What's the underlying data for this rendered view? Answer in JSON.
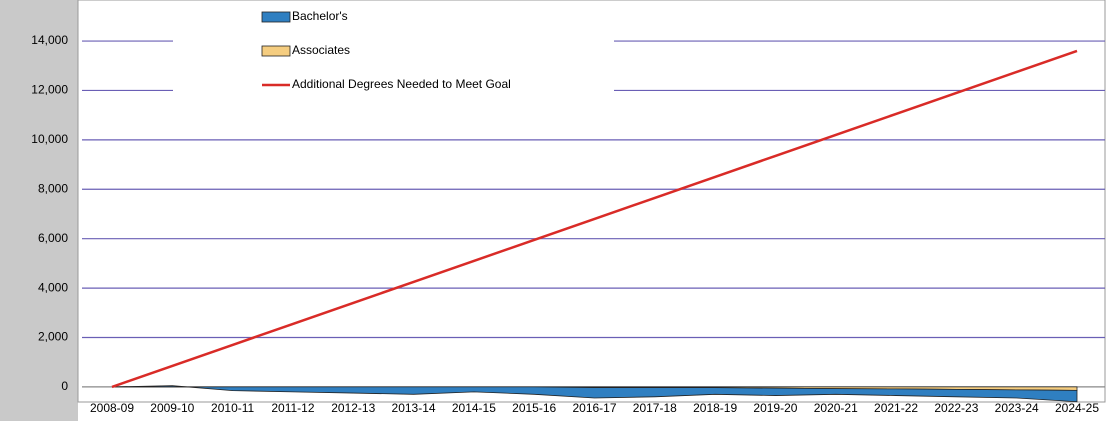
{
  "chart_data": {
    "type": "area",
    "categories": [
      "2008-09",
      "2009-10",
      "2010-11",
      "2011-12",
      "2012-13",
      "2013-14",
      "2014-15",
      "2015-16",
      "2016-17",
      "2017-18",
      "2018-19",
      "2019-20",
      "2020-21",
      "2021-22",
      "2022-23",
      "2023-24",
      "2024-25"
    ],
    "series": [
      {
        "name": "Bachelor's",
        "type": "area",
        "color": "#2f7fc1",
        "values": [
          0,
          50,
          -150,
          -200,
          -250,
          -300,
          -200,
          -300,
          -420,
          -370,
          -270,
          -300,
          -230,
          -270,
          -300,
          -330,
          -460
        ]
      },
      {
        "name": "Associates",
        "type": "area",
        "color": "#f5cd80",
        "values": [
          0,
          0,
          0,
          0,
          0,
          0,
          0,
          0,
          -30,
          -30,
          -30,
          -50,
          -70,
          -80,
          -100,
          -120,
          -140
        ]
      },
      {
        "name": "Additional Degrees Needed to Meet Goal",
        "type": "line",
        "color": "#d92b27",
        "values": [
          0,
          850,
          1700,
          2550,
          3400,
          4250,
          5100,
          5950,
          6800,
          7650,
          8500,
          9350,
          10200,
          11050,
          11900,
          12750,
          13600
        ]
      }
    ],
    "ylim": [
      -530,
      15540
    ],
    "yticks": [
      0,
      {
        "value": 2000,
        "label": "2,000"
      },
      {
        "value": 4000,
        "label": "4,000"
      },
      {
        "value": 6000,
        "label": "6,000"
      },
      {
        "value": 8000,
        "label": "8,000"
      },
      {
        "value": 10000,
        "label": "10,000"
      },
      {
        "value": 12000,
        "label": "12,000"
      },
      {
        "value": 14000,
        "label": "14,000"
      }
    ],
    "grid": true,
    "legend": "top"
  }
}
